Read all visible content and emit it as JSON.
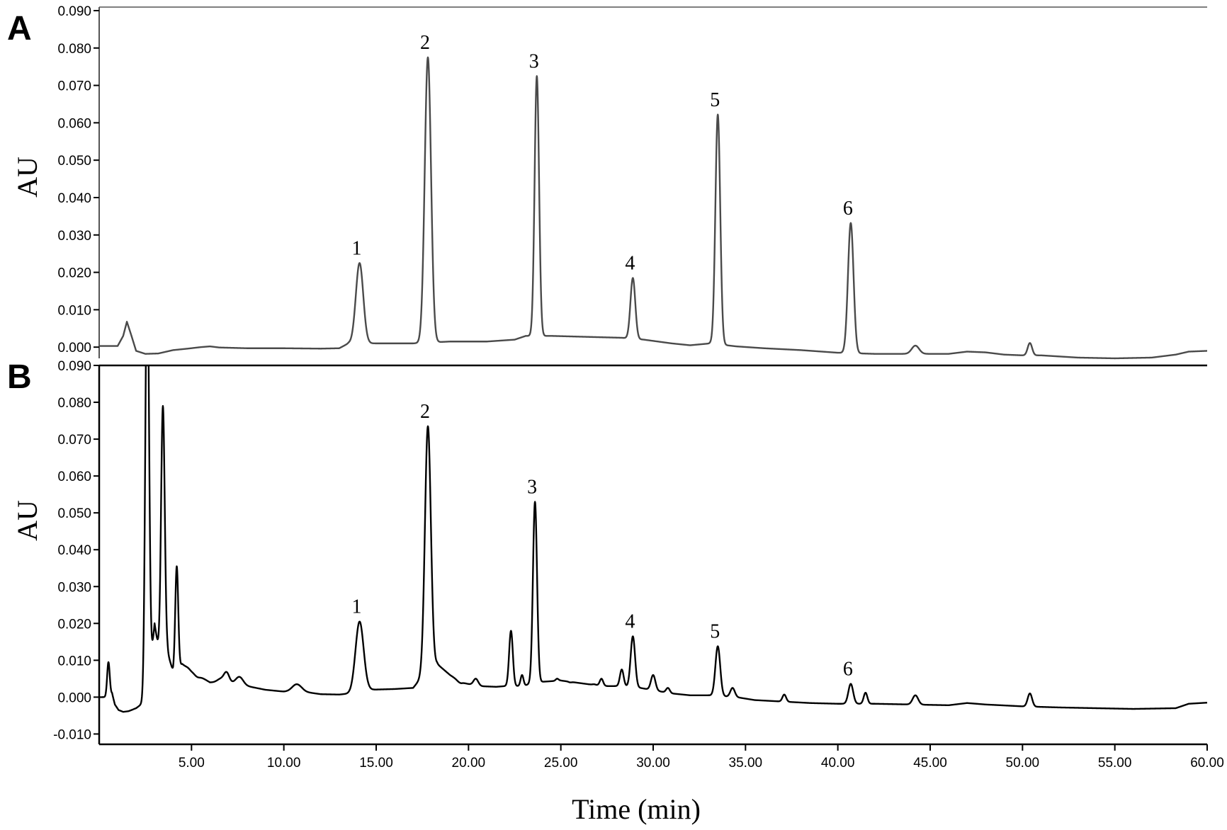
{
  "chart_data": [
    {
      "type": "line",
      "panel_label": "A",
      "ylabel": "AU",
      "xlim": [
        0,
        60
      ],
      "ylim": [
        -0.003,
        0.09
      ],
      "y_ticks": [
        "0.000",
        "0.010",
        "0.020",
        "0.030",
        "0.040",
        "0.050",
        "0.060",
        "0.070",
        "0.080",
        "0.090"
      ],
      "y_tick_values": [
        0,
        0.01,
        0.02,
        0.03,
        0.04,
        0.05,
        0.06,
        0.07,
        0.08,
        0.09
      ],
      "line_color": "#4a4a4a",
      "baseline": [
        [
          0,
          0.0003
        ],
        [
          1.0,
          0.0003
        ],
        [
          1.3,
          0.003
        ],
        [
          1.5,
          0.0068
        ],
        [
          1.75,
          0.003
        ],
        [
          2.0,
          -0.001
        ],
        [
          2.5,
          -0.0018
        ],
        [
          3.2,
          -0.0017
        ],
        [
          4.0,
          -0.0008
        ],
        [
          4.8,
          -0.0004
        ],
        [
          5.5,
          0
        ],
        [
          6.0,
          0.0002
        ],
        [
          6.5,
          -0.0001
        ],
        [
          8,
          -0.0003
        ],
        [
          10,
          -0.0003
        ],
        [
          12,
          -0.0004
        ],
        [
          13,
          -0.0003
        ],
        [
          13.5,
          0.001
        ],
        [
          17,
          0.001
        ],
        [
          19,
          0.0015
        ],
        [
          21,
          0.0015
        ],
        [
          22.5,
          0.002
        ],
        [
          23.1,
          0.003
        ],
        [
          24.5,
          0.003
        ],
        [
          26,
          0.0028
        ],
        [
          28.3,
          0.0025
        ],
        [
          29.5,
          0.002
        ],
        [
          31,
          0.001
        ],
        [
          32,
          0.0005
        ],
        [
          33.1,
          0.001
        ],
        [
          34.5,
          0.0002
        ],
        [
          36,
          -0.0003
        ],
        [
          38,
          -0.0008
        ],
        [
          40,
          -0.0015
        ],
        [
          42,
          -0.0018
        ],
        [
          44,
          -0.0018
        ],
        [
          46,
          -0.0018
        ],
        [
          47,
          -0.0012
        ],
        [
          48,
          -0.0014
        ],
        [
          49,
          -0.002
        ],
        [
          50,
          -0.0022
        ],
        [
          51,
          -0.0022
        ],
        [
          53,
          -0.0028
        ],
        [
          55,
          -0.003
        ],
        [
          57,
          -0.0028
        ],
        [
          58.3,
          -0.002
        ],
        [
          59,
          -0.0012
        ],
        [
          60,
          -0.001
        ]
      ],
      "peaks": [
        {
          "label": "1",
          "t": 14.1,
          "height": 0.0225,
          "width": 0.2
        },
        {
          "label": "2",
          "t": 17.8,
          "height": 0.0775,
          "width": 0.17
        },
        {
          "label": "3",
          "t": 23.7,
          "height": 0.0725,
          "width": 0.12
        },
        {
          "label": "4",
          "t": 28.9,
          "height": 0.0185,
          "width": 0.13
        },
        {
          "label": "5",
          "t": 33.5,
          "height": 0.0622,
          "width": 0.13
        },
        {
          "label": "6",
          "t": 40.7,
          "height": 0.0332,
          "width": 0.15
        }
      ],
      "minor_peaks": [
        {
          "t": 50.4,
          "height": 0.0011,
          "width": 0.12
        },
        {
          "t": 44.2,
          "height": 0.0004,
          "width": 0.2
        }
      ]
    },
    {
      "type": "line",
      "panel_label": "B",
      "ylabel": "AU",
      "xlabel": "Time (min)",
      "xlim": [
        0,
        60
      ],
      "ylim": [
        -0.0128,
        0.09
      ],
      "x_ticks": [
        "5.00",
        "10.00",
        "15.00",
        "20.00",
        "25.00",
        "30.00",
        "35.00",
        "40.00",
        "45.00",
        "50.00",
        "55.00",
        "60.00"
      ],
      "x_tick_values": [
        5,
        10,
        15,
        20,
        25,
        30,
        35,
        40,
        45,
        50,
        55,
        60
      ],
      "y_ticks": [
        "-0.010",
        "0.000",
        "0.010",
        "0.020",
        "0.030",
        "0.040",
        "0.050",
        "0.060",
        "0.070",
        "0.080",
        "0.090"
      ],
      "y_tick_values": [
        -0.01,
        0,
        0.01,
        0.02,
        0.03,
        0.04,
        0.05,
        0.06,
        0.07,
        0.08,
        0.09
      ],
      "line_color": "#000000",
      "baseline": [
        [
          0,
          0
        ],
        [
          0.4,
          0
        ],
        [
          0.7,
          0.001
        ],
        [
          0.85,
          -0.002
        ],
        [
          1.05,
          -0.0035
        ],
        [
          1.3,
          -0.004
        ],
        [
          1.6,
          -0.0038
        ],
        [
          2.0,
          -0.003
        ],
        [
          2.4,
          -0.0015
        ],
        [
          2.7,
          0.003
        ],
        [
          3.0,
          0.02
        ],
        [
          3.3,
          0.01
        ],
        [
          3.7,
          0.012
        ],
        [
          4.0,
          0.007
        ],
        [
          4.5,
          0.009
        ],
        [
          5.0,
          0.007
        ],
        [
          6.0,
          0.004
        ],
        [
          7.0,
          0.004
        ],
        [
          8.0,
          0.003
        ],
        [
          9.0,
          0.002
        ],
        [
          10.0,
          0.0015
        ],
        [
          11.0,
          0.0015
        ],
        [
          12.0,
          0.0008
        ],
        [
          13.0,
          0.0007
        ],
        [
          13.6,
          0.001
        ],
        [
          14.6,
          0.002
        ],
        [
          16.0,
          0.0022
        ],
        [
          17.0,
          0.0025
        ],
        [
          17.4,
          0.005
        ],
        [
          18.3,
          0.009
        ],
        [
          19.0,
          0.006
        ],
        [
          19.6,
          0.004
        ],
        [
          20.5,
          0.003
        ],
        [
          21.5,
          0.0028
        ],
        [
          22.0,
          0.003
        ],
        [
          23.0,
          0.003
        ],
        [
          23.5,
          0.004
        ],
        [
          25.0,
          0.0045
        ],
        [
          26.5,
          0.0035
        ],
        [
          27.5,
          0.003
        ],
        [
          28.3,
          0.003
        ],
        [
          29.3,
          0.0025
        ],
        [
          31,
          0.001
        ],
        [
          32,
          0.0005
        ],
        [
          33,
          0.0005
        ],
        [
          34.5,
          0
        ],
        [
          35.5,
          -0.0008
        ],
        [
          37,
          -0.0012
        ],
        [
          38.5,
          -0.0016
        ],
        [
          40,
          -0.0018
        ],
        [
          42,
          -0.0018
        ],
        [
          44,
          -0.002
        ],
        [
          46,
          -0.0022
        ],
        [
          47,
          -0.0016
        ],
        [
          48,
          -0.002
        ],
        [
          50,
          -0.0025
        ],
        [
          52,
          -0.0028
        ],
        [
          54,
          -0.003
        ],
        [
          56,
          -0.0032
        ],
        [
          58.3,
          -0.003
        ],
        [
          59,
          -0.0018
        ],
        [
          60,
          -0.0015
        ]
      ],
      "peaks": [
        {
          "label": "1",
          "t": 14.1,
          "height": 0.0205,
          "width": 0.22
        },
        {
          "label": "2",
          "t": 17.8,
          "height": 0.0735,
          "width": 0.16
        },
        {
          "label": "3",
          "t": 23.6,
          "height": 0.053,
          "width": 0.11
        },
        {
          "label": "4",
          "t": 28.9,
          "height": 0.0165,
          "width": 0.12
        },
        {
          "label": "5",
          "t": 33.5,
          "height": 0.0138,
          "width": 0.13
        },
        {
          "label": "6",
          "t": 40.7,
          "height": 0.0036,
          "width": 0.13
        }
      ],
      "minor_peaks": [
        {
          "t": 0.5,
          "height": 0.0095,
          "width": 0.07
        },
        {
          "t": 2.6,
          "height": 0.12,
          "width": 0.1
        },
        {
          "t": 3.45,
          "height": 0.079,
          "width": 0.1
        },
        {
          "t": 4.2,
          "height": 0.0355,
          "width": 0.08
        },
        {
          "t": 4.8,
          "height": 0.008,
          "width": 0.1
        },
        {
          "t": 5.3,
          "height": 0.0055,
          "width": 0.15
        },
        {
          "t": 6.6,
          "height": 0.005,
          "width": 0.2
        },
        {
          "t": 6.9,
          "height": 0.0065,
          "width": 0.14
        },
        {
          "t": 7.6,
          "height": 0.0055,
          "width": 0.2
        },
        {
          "t": 10.7,
          "height": 0.0035,
          "width": 0.25
        },
        {
          "t": 19.5,
          "height": 0.004,
          "width": 0.12
        },
        {
          "t": 20.4,
          "height": 0.005,
          "width": 0.13
        },
        {
          "t": 22.3,
          "height": 0.018,
          "width": 0.1
        },
        {
          "t": 22.9,
          "height": 0.006,
          "width": 0.08
        },
        {
          "t": 24.8,
          "height": 0.005,
          "width": 0.08
        },
        {
          "t": 25.5,
          "height": 0.004,
          "width": 0.08
        },
        {
          "t": 26.8,
          "height": 0.0035,
          "width": 0.08
        },
        {
          "t": 27.2,
          "height": 0.005,
          "width": 0.09
        },
        {
          "t": 28.3,
          "height": 0.0075,
          "width": 0.1
        },
        {
          "t": 30.0,
          "height": 0.006,
          "width": 0.12
        },
        {
          "t": 30.8,
          "height": 0.0025,
          "width": 0.1
        },
        {
          "t": 34.3,
          "height": 0.0025,
          "width": 0.12
        },
        {
          "t": 37.1,
          "height": 0.0007,
          "width": 0.1
        },
        {
          "t": 41.5,
          "height": 0.0012,
          "width": 0.1
        },
        {
          "t": 44.2,
          "height": 0.0005,
          "width": 0.15
        },
        {
          "t": 50.4,
          "height": 0.001,
          "width": 0.12
        }
      ]
    }
  ]
}
